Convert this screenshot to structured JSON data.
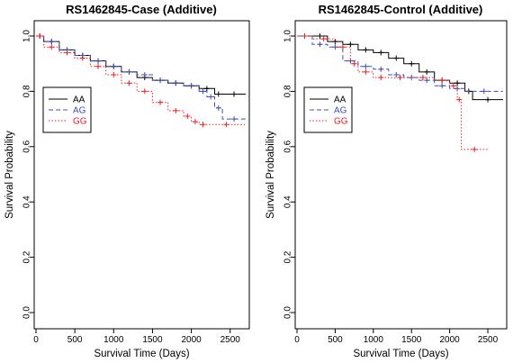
{
  "chart_data": [
    {
      "type": "line",
      "title": "RS1462845-Case (Additive)",
      "xlabel": "Survival Time (Days)",
      "ylabel": "Survival Probability",
      "xlim": [
        0,
        2700
      ],
      "ylim": [
        0.0,
        1.0
      ],
      "x_ticks": [
        "0",
        "500",
        "1000",
        "1500",
        "2000",
        "2500"
      ],
      "y_ticks": [
        "0.0",
        "0.2",
        "0.4",
        "0.6",
        "0.8",
        "1.0"
      ],
      "legend_position": "left",
      "series": [
        {
          "name": "AA",
          "color": "#000000",
          "style": "solid",
          "x": [
            0,
            100,
            300,
            500,
            700,
            900,
            1100,
            1300,
            1500,
            1700,
            1900,
            2100,
            2300,
            2400,
            2700
          ],
          "y": [
            1.0,
            0.98,
            0.95,
            0.93,
            0.91,
            0.89,
            0.87,
            0.85,
            0.84,
            0.83,
            0.82,
            0.81,
            0.79,
            0.79,
            0.79
          ]
        },
        {
          "name": "AG",
          "color": "#3f4fb8",
          "style": "dashed",
          "x": [
            0,
            100,
            300,
            500,
            700,
            900,
            1100,
            1300,
            1500,
            1700,
            1900,
            2100,
            2200,
            2300,
            2400,
            2700
          ],
          "y": [
            1.0,
            0.98,
            0.95,
            0.93,
            0.91,
            0.89,
            0.87,
            0.86,
            0.84,
            0.83,
            0.82,
            0.8,
            0.78,
            0.74,
            0.7,
            0.7
          ]
        },
        {
          "name": "GG",
          "color": "#e8202a",
          "style": "dotted",
          "x": [
            0,
            100,
            300,
            500,
            700,
            900,
            1100,
            1300,
            1500,
            1700,
            1900,
            2000,
            2100,
            2200,
            2700
          ],
          "y": [
            1.0,
            0.96,
            0.94,
            0.92,
            0.89,
            0.86,
            0.83,
            0.8,
            0.76,
            0.73,
            0.71,
            0.69,
            0.68,
            0.68,
            0.68
          ]
        }
      ]
    },
    {
      "type": "line",
      "title": "RS1462845-Control (Additive)",
      "xlabel": "Survival Time (Days)",
      "ylabel": "Survival Probability",
      "xlim": [
        0,
        2700
      ],
      "ylim": [
        0.0,
        1.0
      ],
      "x_ticks": [
        "0",
        "500",
        "1000",
        "1500",
        "2000",
        "2500"
      ],
      "y_ticks": [
        "0.0",
        "0.2",
        "0.4",
        "0.6",
        "0.8",
        "1.0"
      ],
      "legend_position": "left",
      "series": [
        {
          "name": "AA",
          "color": "#000000",
          "style": "solid",
          "x": [
            0,
            200,
            400,
            600,
            800,
            1000,
            1200,
            1400,
            1600,
            1800,
            2000,
            2200,
            2300,
            2700
          ],
          "y": [
            1.0,
            1.0,
            0.98,
            0.97,
            0.95,
            0.94,
            0.92,
            0.9,
            0.87,
            0.84,
            0.83,
            0.8,
            0.77,
            0.77
          ]
        },
        {
          "name": "AG",
          "color": "#3f4fb8",
          "style": "dashed",
          "x": [
            0,
            200,
            400,
            600,
            800,
            1000,
            1200,
            1400,
            1600,
            1800,
            2000,
            2200,
            2700
          ],
          "y": [
            1.0,
            0.97,
            0.96,
            0.91,
            0.89,
            0.88,
            0.86,
            0.85,
            0.84,
            0.82,
            0.81,
            0.8,
            0.8
          ]
        },
        {
          "name": "GG",
          "color": "#e8202a",
          "style": "dotted",
          "x": [
            0,
            200,
            500,
            700,
            800,
            1000,
            1200,
            1500,
            1800,
            2000,
            2100,
            2150,
            2500
          ],
          "y": [
            1.0,
            0.99,
            0.96,
            0.9,
            0.87,
            0.85,
            0.85,
            0.85,
            0.84,
            0.82,
            0.77,
            0.59,
            0.59
          ]
        }
      ]
    }
  ]
}
